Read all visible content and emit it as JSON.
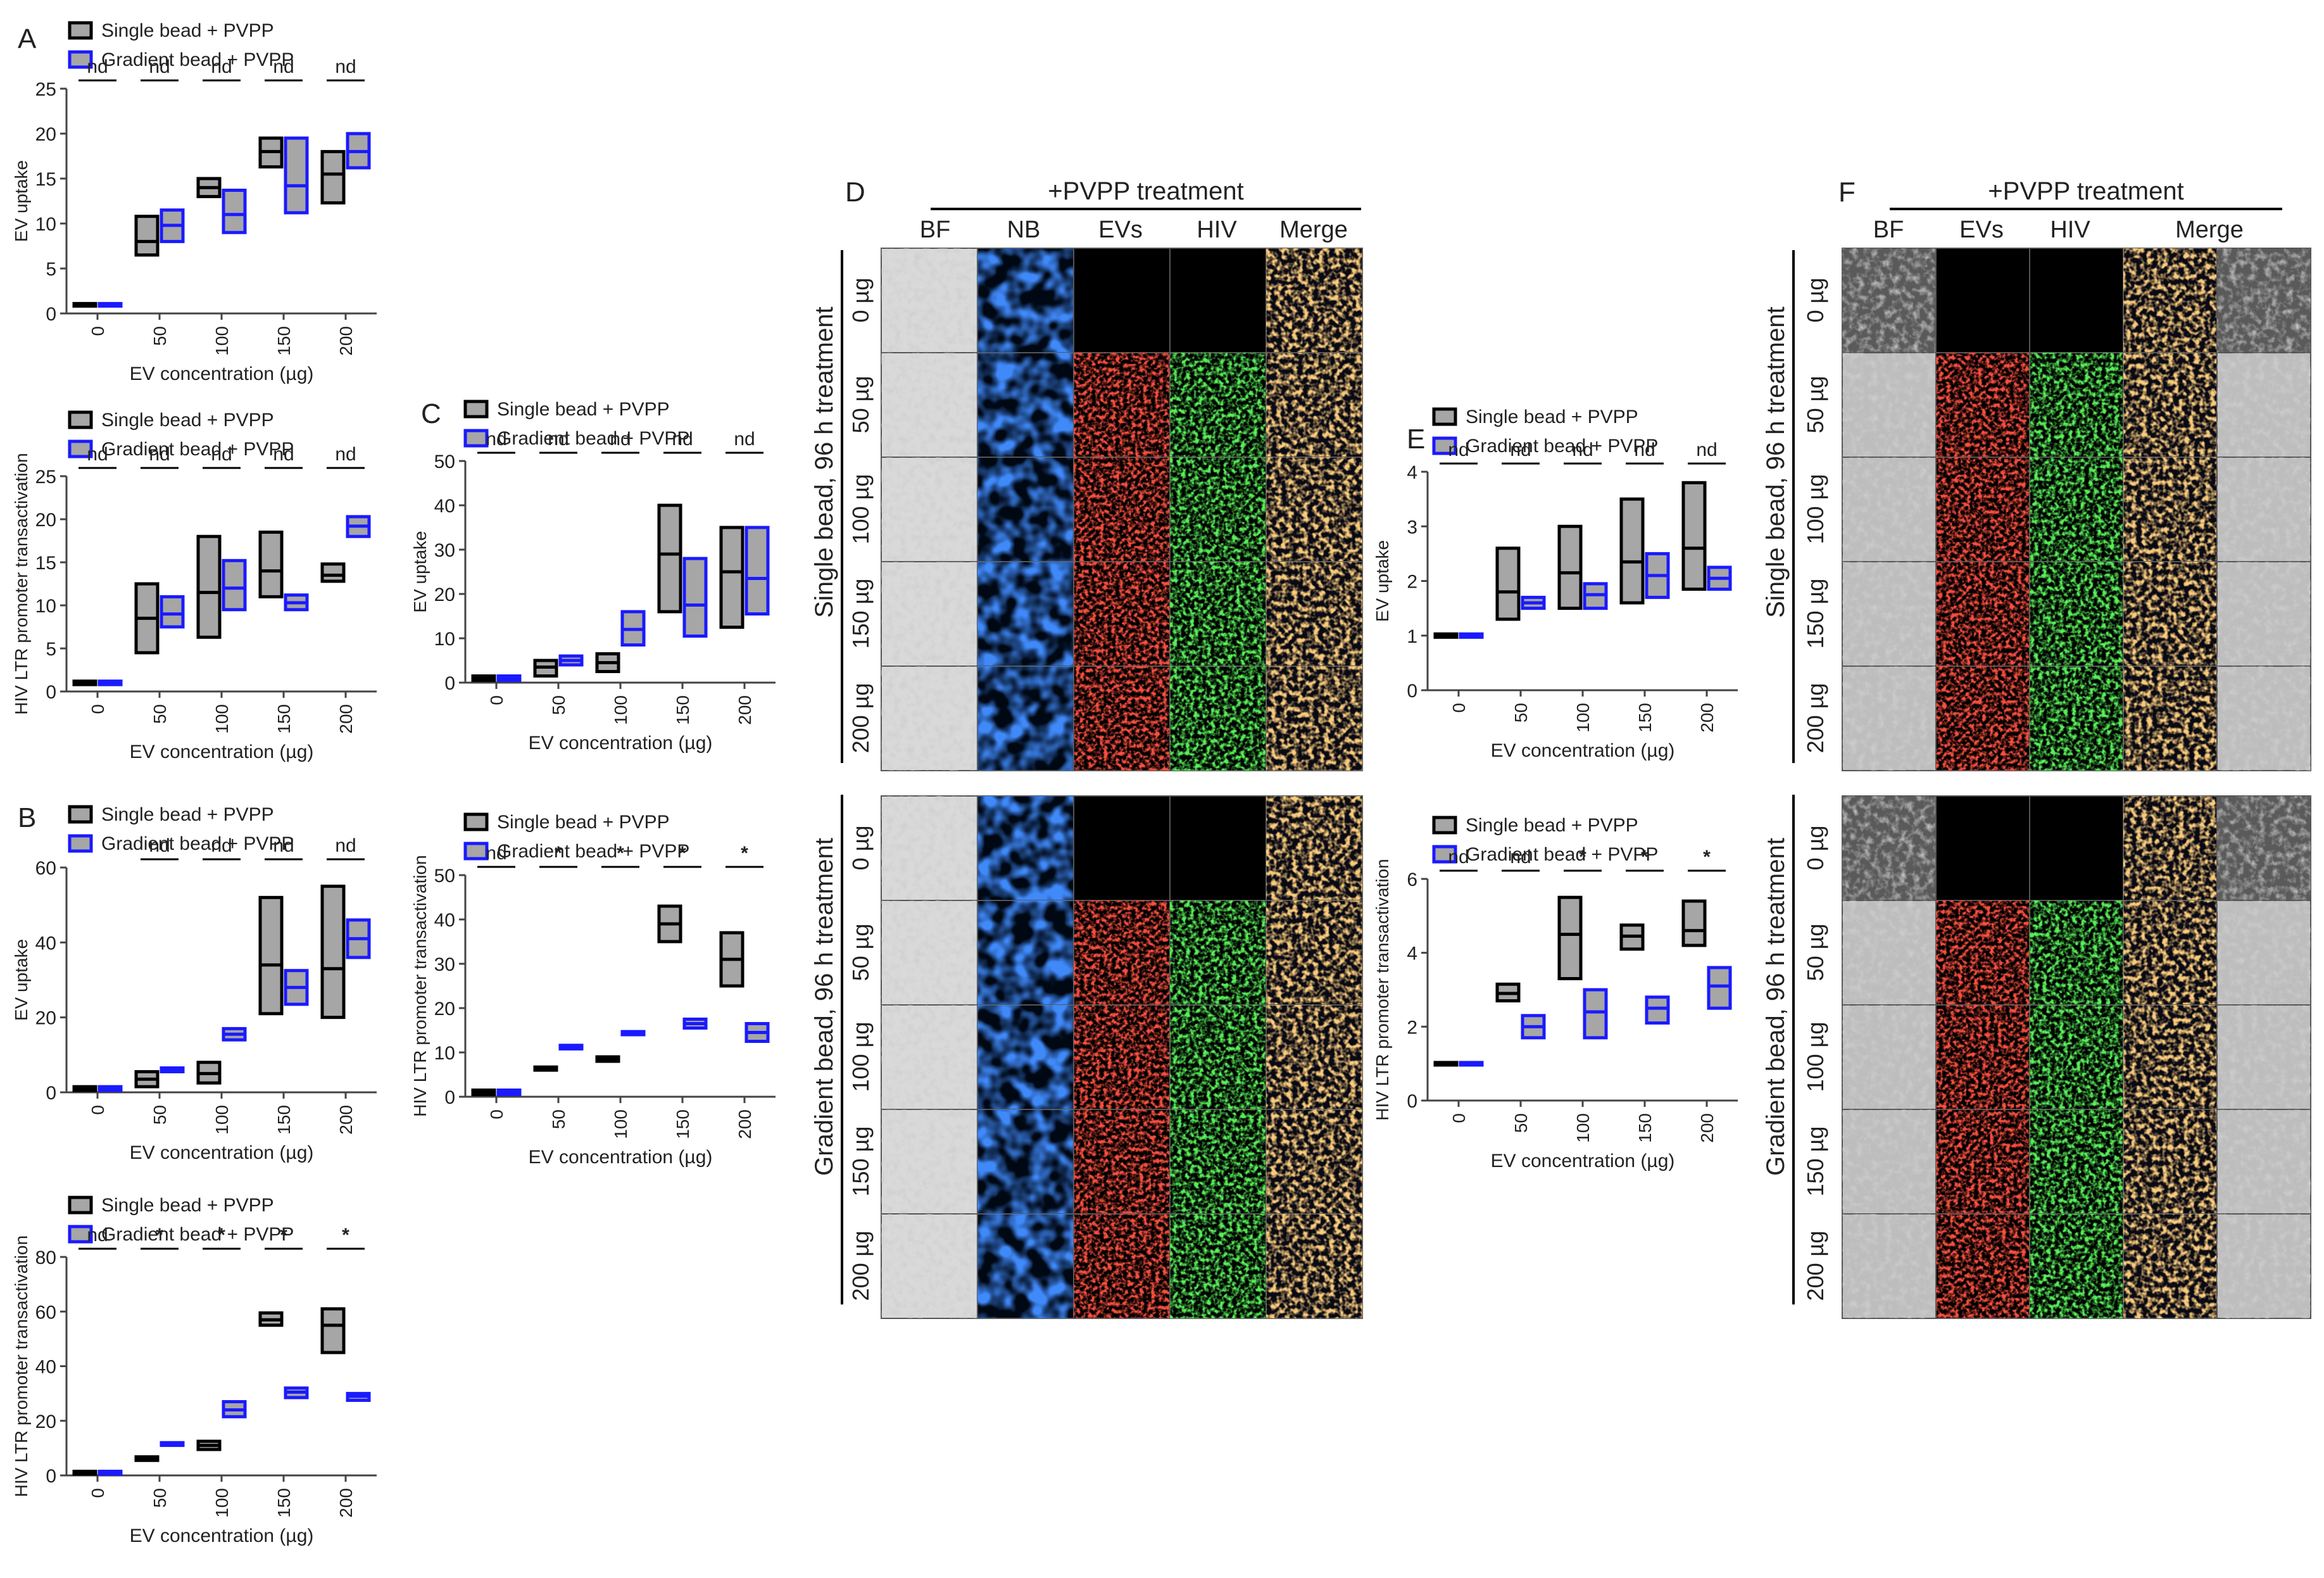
{
  "figure": {
    "type": "box-plot multi-panel figure with fluorescence microscopy panels"
  },
  "colors": {
    "single": "#000000",
    "single_fill": "#a6a6a6",
    "gradient": "#1a1aff",
    "gradient_fill": "#a6a6a6"
  },
  "legend": {
    "single": "Single bead + PVPP",
    "gradient": "Gradient bead + PVPP"
  },
  "chart_data": [
    {
      "id": "A1",
      "type": "box",
      "panel_label": "A",
      "ylabel": "EV uptake",
      "xlabel": "EV concentration (µg)",
      "categories": [
        "0",
        "50",
        "100",
        "150",
        "200"
      ],
      "ylim": [
        0,
        25
      ],
      "yticks": [
        0,
        5,
        10,
        15,
        20,
        25
      ],
      "significance": [
        "nd",
        "nd",
        "nd",
        "nd",
        "nd"
      ],
      "series": [
        {
          "name": "Single bead + PVPP",
          "boxes": [
            {
              "min": 0.9,
              "median": 1,
              "max": 1.1
            },
            {
              "min": 6.5,
              "median": 8,
              "max": 10.8
            },
            {
              "min": 13,
              "median": 14,
              "max": 15
            },
            {
              "min": 16.3,
              "median": 18,
              "max": 19.5
            },
            {
              "min": 12.3,
              "median": 15.5,
              "max": 18
            }
          ]
        },
        {
          "name": "Gradient bead + PVPP",
          "boxes": [
            {
              "min": 0.9,
              "median": 1,
              "max": 1.1
            },
            {
              "min": 8,
              "median": 9.8,
              "max": 11.5
            },
            {
              "min": 9,
              "median": 11,
              "max": 13.7
            },
            {
              "min": 11.2,
              "median": 14.2,
              "max": 19.5
            },
            {
              "min": 16.2,
              "median": 18,
              "max": 20
            }
          ]
        }
      ]
    },
    {
      "id": "A2",
      "type": "box",
      "panel_label": "",
      "ylabel": "HIV LTR promoter transactivation",
      "xlabel": "EV concentration (µg)",
      "categories": [
        "0",
        "50",
        "100",
        "150",
        "200"
      ],
      "ylim": [
        0,
        25
      ],
      "yticks": [
        0,
        5,
        10,
        15,
        20,
        25
      ],
      "significance": [
        "nd",
        "nd",
        "nd",
        "nd",
        "nd"
      ],
      "series": [
        {
          "name": "Single bead + PVPP",
          "boxes": [
            {
              "min": 0.8,
              "median": 1,
              "max": 1.2
            },
            {
              "min": 4.5,
              "median": 8.5,
              "max": 12.5
            },
            {
              "min": 6.3,
              "median": 11.5,
              "max": 18
            },
            {
              "min": 11,
              "median": 14,
              "max": 18.5
            },
            {
              "min": 12.8,
              "median": 13.5,
              "max": 14.8
            }
          ]
        },
        {
          "name": "Gradient bead + PVPP",
          "boxes": [
            {
              "min": 0.8,
              "median": 1,
              "max": 1.2
            },
            {
              "min": 7.5,
              "median": 9,
              "max": 11
            },
            {
              "min": 9.5,
              "median": 12,
              "max": 15.2
            },
            {
              "min": 9.5,
              "median": 10.3,
              "max": 11.2
            },
            {
              "min": 18,
              "median": 19.2,
              "max": 20.3
            }
          ]
        }
      ]
    },
    {
      "id": "B1",
      "type": "box",
      "panel_label": "B",
      "ylabel": "EV uptake",
      "xlabel": "EV concentration (µg)",
      "categories": [
        "0",
        "50",
        "100",
        "150",
        "200"
      ],
      "ylim": [
        0,
        60
      ],
      "yticks": [
        0,
        20,
        40,
        60
      ],
      "significance": [
        "",
        "nd",
        "nd",
        "nd",
        "nd"
      ],
      "series": [
        {
          "name": "Single bead + PVPP",
          "boxes": [
            {
              "min": 0.5,
              "median": 1,
              "max": 1.5
            },
            {
              "min": 1.5,
              "median": 3.5,
              "max": 5.5
            },
            {
              "min": 2.5,
              "median": 5,
              "max": 8
            },
            {
              "min": 21,
              "median": 34,
              "max": 52
            },
            {
              "min": 20,
              "median": 33,
              "max": 55
            }
          ]
        },
        {
          "name": "Gradient bead + PVPP",
          "boxes": [
            {
              "min": 0.5,
              "median": 1,
              "max": 1.5
            },
            {
              "min": 5.5,
              "median": 6,
              "max": 6.5
            },
            {
              "min": 14,
              "median": 15.5,
              "max": 17
            },
            {
              "min": 23.5,
              "median": 28,
              "max": 32.5
            },
            {
              "min": 36,
              "median": 41,
              "max": 46
            }
          ]
        }
      ]
    },
    {
      "id": "B2",
      "type": "box",
      "panel_label": "",
      "ylabel": "HIV LTR promoter transactivation",
      "xlabel": "EV concentration (µg)",
      "categories": [
        "0",
        "50",
        "100",
        "150",
        "200"
      ],
      "ylim": [
        0,
        80
      ],
      "yticks": [
        0,
        20,
        40,
        60,
        80
      ],
      "significance": [
        "nd",
        "*",
        "*",
        "*",
        "*"
      ],
      "series": [
        {
          "name": "Single bead + PVPP",
          "boxes": [
            {
              "min": 0.5,
              "median": 1,
              "max": 1.5
            },
            {
              "min": 5.5,
              "median": 6,
              "max": 6.8
            },
            {
              "min": 9.5,
              "median": 11,
              "max": 12.5
            },
            {
              "min": 55,
              "median": 57,
              "max": 59.5
            },
            {
              "min": 45,
              "median": 55,
              "max": 61
            }
          ]
        },
        {
          "name": "Gradient bead + PVPP",
          "boxes": [
            {
              "min": 0.5,
              "median": 1,
              "max": 1.5
            },
            {
              "min": 11,
              "median": 11.5,
              "max": 12
            },
            {
              "min": 21.5,
              "median": 24,
              "max": 27
            },
            {
              "min": 28.5,
              "median": 30.5,
              "max": 32
            },
            {
              "min": 27.5,
              "median": 29,
              "max": 30
            }
          ]
        }
      ]
    },
    {
      "id": "C1",
      "type": "box",
      "panel_label": "C",
      "ylabel": "EV uptake",
      "xlabel": "EV concentration (µg)",
      "categories": [
        "0",
        "50",
        "100",
        "150",
        "200"
      ],
      "ylim": [
        0,
        50
      ],
      "yticks": [
        0,
        10,
        20,
        30,
        40,
        50
      ],
      "significance": [
        "nd",
        "nd",
        "nd",
        "nd",
        "nd"
      ],
      "series": [
        {
          "name": "Single bead + PVPP",
          "boxes": [
            {
              "min": 0.5,
              "median": 1,
              "max": 1.5
            },
            {
              "min": 1.5,
              "median": 3.5,
              "max": 5
            },
            {
              "min": 2.5,
              "median": 4.5,
              "max": 6.5
            },
            {
              "min": 16,
              "median": 29,
              "max": 40
            },
            {
              "min": 12.5,
              "median": 25,
              "max": 35
            }
          ]
        },
        {
          "name": "Gradient bead + PVPP",
          "boxes": [
            {
              "min": 0.5,
              "median": 1,
              "max": 1.5
            },
            {
              "min": 4,
              "median": 5,
              "max": 6
            },
            {
              "min": 8.5,
              "median": 12,
              "max": 16
            },
            {
              "min": 10.5,
              "median": 17.5,
              "max": 28
            },
            {
              "min": 15.5,
              "median": 23.5,
              "max": 35
            }
          ]
        }
      ]
    },
    {
      "id": "C2",
      "type": "box",
      "panel_label": "",
      "ylabel": "HIV LTR promoter transactivation",
      "xlabel": "EV concentration (µg)",
      "categories": [
        "0",
        "50",
        "100",
        "150",
        "200"
      ],
      "ylim": [
        0,
        50
      ],
      "yticks": [
        0,
        10,
        20,
        30,
        40,
        50
      ],
      "significance": [
        "nd",
        "*",
        "*",
        "*",
        "*"
      ],
      "series": [
        {
          "name": "Single bead + PVPP",
          "boxes": [
            {
              "min": 0.5,
              "median": 1,
              "max": 1.5
            },
            {
              "min": 6,
              "median": 6.3,
              "max": 6.7
            },
            {
              "min": 8,
              "median": 8.5,
              "max": 9
            },
            {
              "min": 35,
              "median": 39,
              "max": 43
            },
            {
              "min": 25,
              "median": 31,
              "max": 37
            }
          ]
        },
        {
          "name": "Gradient bead + PVPP",
          "boxes": [
            {
              "min": 0.5,
              "median": 1,
              "max": 1.5
            },
            {
              "min": 10.8,
              "median": 11.2,
              "max": 11.6
            },
            {
              "min": 14,
              "median": 14.3,
              "max": 14.7
            },
            {
              "min": 15.5,
              "median": 16.5,
              "max": 17.5
            },
            {
              "min": 12.5,
              "median": 14.5,
              "max": 16.5
            }
          ]
        }
      ]
    },
    {
      "id": "E1",
      "type": "box",
      "panel_label": "E",
      "ylabel": "EV uptake",
      "xlabel": "EV concentration (µg)",
      "categories": [
        "0",
        "50",
        "100",
        "150",
        "200"
      ],
      "ylim": [
        0,
        4
      ],
      "yticks": [
        0,
        1,
        2,
        3,
        4
      ],
      "significance": [
        "nd",
        "nd",
        "nd",
        "nd",
        "nd"
      ],
      "series": [
        {
          "name": "Single bead + PVPP",
          "boxes": [
            {
              "min": 0.97,
              "median": 1,
              "max": 1.03
            },
            {
              "min": 1.3,
              "median": 1.8,
              "max": 2.6
            },
            {
              "min": 1.5,
              "median": 2.15,
              "max": 3
            },
            {
              "min": 1.6,
              "median": 2.35,
              "max": 3.5
            },
            {
              "min": 1.85,
              "median": 2.6,
              "max": 3.8
            }
          ]
        },
        {
          "name": "Gradient bead + PVPP",
          "boxes": [
            {
              "min": 0.97,
              "median": 1,
              "max": 1.03
            },
            {
              "min": 1.5,
              "median": 1.6,
              "max": 1.7
            },
            {
              "min": 1.5,
              "median": 1.75,
              "max": 1.95
            },
            {
              "min": 1.7,
              "median": 2.1,
              "max": 2.5
            },
            {
              "min": 1.85,
              "median": 2.05,
              "max": 2.25
            }
          ]
        }
      ]
    },
    {
      "id": "E2",
      "type": "box",
      "panel_label": "",
      "ylabel": "HIV LTR promoter transactivation",
      "xlabel": "EV concentration (µg)",
      "categories": [
        "0",
        "50",
        "100",
        "150",
        "200"
      ],
      "ylim": [
        0,
        6
      ],
      "yticks": [
        0,
        2,
        4,
        6
      ],
      "significance": [
        "nd",
        "nd",
        "*",
        "*",
        "*"
      ],
      "series": [
        {
          "name": "Single bead + PVPP",
          "boxes": [
            {
              "min": 0.97,
              "median": 1,
              "max": 1.03
            },
            {
              "min": 2.7,
              "median": 2.9,
              "max": 3.15
            },
            {
              "min": 3.3,
              "median": 4.5,
              "max": 5.5
            },
            {
              "min": 4.1,
              "median": 4.45,
              "max": 4.75
            },
            {
              "min": 4.2,
              "median": 4.6,
              "max": 5.4
            }
          ]
        },
        {
          "name": "Gradient bead + PVPP",
          "boxes": [
            {
              "min": 0.97,
              "median": 1,
              "max": 1.03
            },
            {
              "min": 1.7,
              "median": 2,
              "max": 2.3
            },
            {
              "min": 1.7,
              "median": 2.4,
              "max": 3
            },
            {
              "min": 2.1,
              "median": 2.5,
              "max": 2.8
            },
            {
              "min": 2.5,
              "median": 3.1,
              "max": 3.6
            }
          ]
        }
      ]
    }
  ],
  "micro_D": {
    "label": "D",
    "header": "+PVPP treatment",
    "columns": [
      "BF",
      "NB",
      "EVs",
      "HIV",
      "Merge"
    ],
    "row_labels": [
      "0 µg",
      "50 µg",
      "100 µg",
      "150 µg",
      "200 µg"
    ],
    "group_top": "Single bead, 96 h treatment",
    "group_bottom": "Gradient bead, 96 h treatment"
  },
  "micro_F": {
    "label": "F",
    "header": "+PVPP treatment",
    "columns": [
      "BF",
      "EVs",
      "HIV",
      "Merge"
    ],
    "row_labels": [
      "0 µg",
      "50 µg",
      "100 µg",
      "150 µg",
      "200 µg"
    ],
    "group_top": "Single bead, 96 h treatment",
    "group_bottom": "Gradient bead, 96 h treatment"
  }
}
